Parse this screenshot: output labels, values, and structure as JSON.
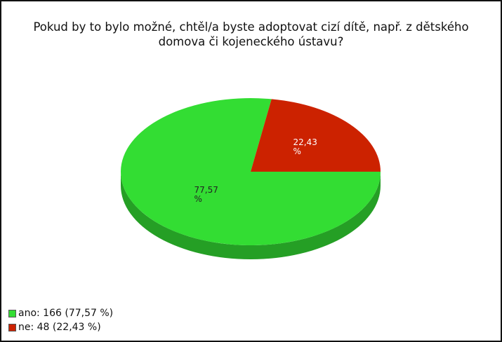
{
  "chart_data": {
    "type": "pie",
    "title": "Pokud by to bylo možné, chtěl/a byste adoptovat cizí dítě, např. z dětského domova či kojeneckého ústavu?",
    "series": [
      {
        "name": "ano: 166 (77,57 %)",
        "color": "#33dd33",
        "values": [
          77.57
        ],
        "value_labels": [
          "77,57 %"
        ]
      },
      {
        "name": "ne: 48 (22,43 %)",
        "color": "#cc2200",
        "values": [
          22.43
        ],
        "value_labels": [
          "22,43 %"
        ]
      }
    ],
    "legend": "bottom-left"
  }
}
